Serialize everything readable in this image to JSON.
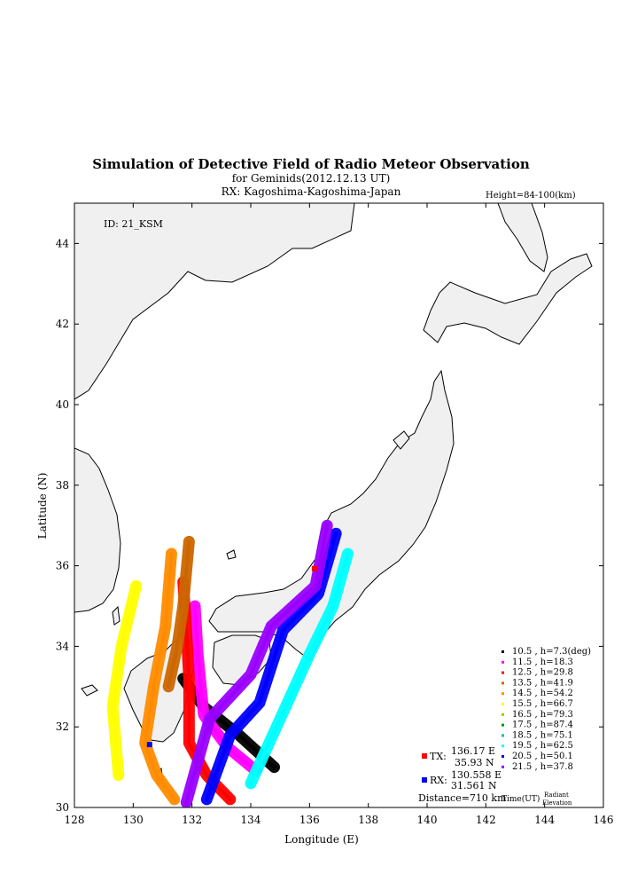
{
  "header": {
    "title": "Simulation of Detective Field of Radio Meteor Observation",
    "subtitle1": "for Geminids(2012.12.13 UT)",
    "subtitle2": "RX: Kagoshima-Kagoshima-Japan",
    "height_label": "Height=84-100(km)"
  },
  "chart_data": {
    "type": "scatter",
    "title": "Simulation of Detective Field of Radio Meteor Observation",
    "xlabel": "Longitude (E)",
    "ylabel": "Latitude (N)",
    "xlim": [
      128,
      146
    ],
    "ylim": [
      30,
      45
    ],
    "xticks": [
      128,
      130,
      132,
      134,
      136,
      138,
      140,
      142,
      144,
      146
    ],
    "yticks": [
      30,
      32,
      34,
      36,
      38,
      40,
      42,
      44
    ],
    "id_label": "ID: 21_KSM",
    "legend_placement": "bottom-right",
    "series": [
      {
        "name": "10.5 , h=7.3(deg)",
        "color": "#000000",
        "path": [
          [
            131.7,
            33.2
          ],
          [
            132.4,
            32.5
          ],
          [
            133.6,
            31.8
          ],
          [
            134.8,
            31.0
          ]
        ]
      },
      {
        "name": "11.5 , h=18.3",
        "color": "#ff00ff",
        "path": [
          [
            132.1,
            35.0
          ],
          [
            132.2,
            33.8
          ],
          [
            132.4,
            32.3
          ],
          [
            133.2,
            31.5
          ],
          [
            134.2,
            30.9
          ]
        ]
      },
      {
        "name": "12.5 , h=29.8",
        "color": "#ff0000",
        "path": [
          [
            131.7,
            35.6
          ],
          [
            131.8,
            34.5
          ],
          [
            131.9,
            33.2
          ],
          [
            131.9,
            31.6
          ],
          [
            132.5,
            30.8
          ],
          [
            133.3,
            30.2
          ]
        ]
      },
      {
        "name": "13.5 , h=41.9",
        "color": "#cc6600",
        "path": [
          [
            131.9,
            36.6
          ],
          [
            131.7,
            35.0
          ],
          [
            131.5,
            34.0
          ],
          [
            131.2,
            33.0
          ]
        ]
      },
      {
        "name": "14.5 , h=54.2",
        "color": "#ff8c00",
        "path": [
          [
            131.3,
            36.3
          ],
          [
            131.1,
            34.5
          ],
          [
            130.7,
            33.0
          ],
          [
            130.4,
            31.6
          ],
          [
            130.8,
            30.8
          ],
          [
            131.4,
            30.2
          ]
        ]
      },
      {
        "name": "15.5 , h=66.7",
        "color": "#ffff00",
        "path": [
          [
            130.1,
            35.5
          ],
          [
            129.6,
            34.0
          ],
          [
            129.3,
            32.5
          ],
          [
            129.5,
            30.8
          ]
        ]
      },
      {
        "name": "16.5 , h=79.3",
        "color": "#99cc00",
        "path": []
      },
      {
        "name": "17.5 , h=87.4",
        "color": "#009900",
        "path": []
      },
      {
        "name": "18.5 , h=75.1",
        "color": "#00c0a0",
        "path": []
      },
      {
        "name": "19.5 , h=62.5",
        "color": "#00ffff",
        "path": [
          [
            137.3,
            36.3
          ],
          [
            136.8,
            35.0
          ],
          [
            136.0,
            33.8
          ],
          [
            135.0,
            32.2
          ],
          [
            134.0,
            30.6
          ]
        ]
      },
      {
        "name": "20.5 , h=50.1",
        "color": "#0000ff",
        "path": [
          [
            136.9,
            36.8
          ],
          [
            136.3,
            35.3
          ],
          [
            135.1,
            34.4
          ],
          [
            134.3,
            32.6
          ],
          [
            133.3,
            31.8
          ],
          [
            132.5,
            30.2
          ]
        ]
      },
      {
        "name": "21.5 , h=37.8",
        "color": "#9900ff",
        "path": [
          [
            136.6,
            37.0
          ],
          [
            136.2,
            35.5
          ],
          [
            134.7,
            34.5
          ],
          [
            134.0,
            33.3
          ],
          [
            132.6,
            32.2
          ],
          [
            131.8,
            30.1
          ]
        ]
      }
    ]
  },
  "legend": {
    "time_label": "Time(UT)",
    "radiant_label": "Radiant",
    "elevation_label": "Elevation"
  },
  "stations": {
    "tx": {
      "label": "TX:",
      "lon_text": "136.17 E",
      "lat_text": "35.93 N",
      "lon": 136.17,
      "lat": 35.93,
      "color": "#ff0000"
    },
    "rx": {
      "label": "RX:",
      "lon_text": "130.558 E",
      "lat_text": "31.561 N",
      "lon": 130.558,
      "lat": 31.561,
      "color": "#0000ff"
    },
    "distance": "Distance=710 km"
  },
  "colors": {
    "land": "#f0f0f0",
    "coast": "#000000"
  }
}
